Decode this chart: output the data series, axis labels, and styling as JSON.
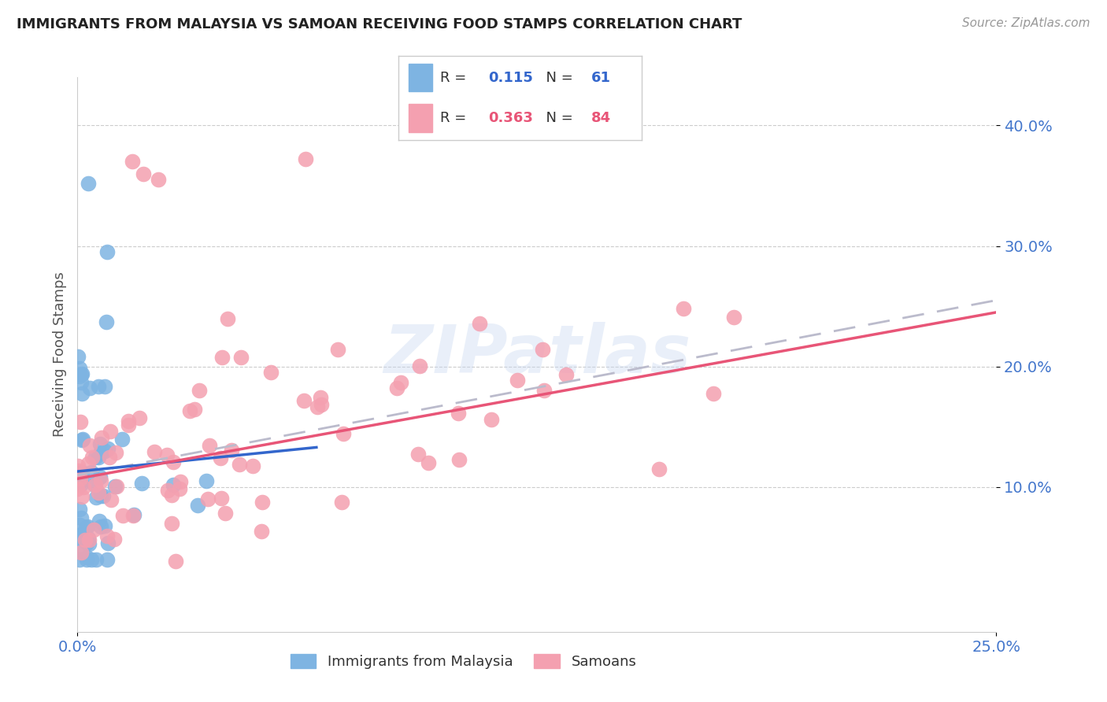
{
  "title": "IMMIGRANTS FROM MALAYSIA VS SAMOAN RECEIVING FOOD STAMPS CORRELATION CHART",
  "source": "Source: ZipAtlas.com",
  "ylabel": "Receiving Food Stamps",
  "ytick_labels": [
    "10.0%",
    "20.0%",
    "30.0%",
    "40.0%"
  ],
  "ytick_values": [
    0.1,
    0.2,
    0.3,
    0.4
  ],
  "xlim": [
    0.0,
    0.25
  ],
  "ylim": [
    -0.02,
    0.44
  ],
  "blue_color": "#7EB4E2",
  "pink_color": "#F4A0B0",
  "blue_line_color": "#3366CC",
  "pink_line_color": "#E85577",
  "dashed_line_color": "#BBBBCC",
  "title_color": "#222222",
  "axis_label_color": "#4477CC",
  "watermark": "ZIPatlas",
  "legend_r1_val": "0.115",
  "legend_n1_val": "61",
  "legend_r2_val": "0.363",
  "legend_n2_val": "84"
}
